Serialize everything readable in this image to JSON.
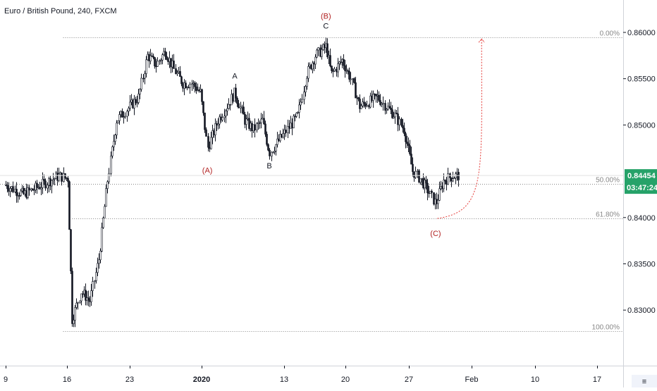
{
  "chart_data": {
    "type": "candlestick",
    "title": "Euro / British Pound, 240, FXCM",
    "y_ticks": [
      "0.86000",
      "0.85500",
      "0.85000",
      "0.84000",
      "0.83500",
      "0.83000"
    ],
    "x_ticks": [
      "9",
      "16",
      "23",
      "2020",
      "13",
      "20",
      "27",
      "Feb",
      "10",
      "17"
    ],
    "ylim": [
      0.824,
      0.8635
    ],
    "grid": false,
    "colors": {
      "up": "#131722",
      "down": "#131722",
      "fib": "#888888",
      "wave_red": "#b22222",
      "wave_black": "#131722",
      "projection": "#e53935",
      "badge": "#26a269"
    },
    "current_price": {
      "price": "0.84454",
      "countdown": "03:47:24",
      "value": 0.84454
    },
    "fib_levels": [
      {
        "label": "0.00%",
        "value": 0.8595
      },
      {
        "label": "50.00%",
        "value": 0.84362
      },
      {
        "label": "61.80%",
        "value": 0.83988
      },
      {
        "label": "100.00%",
        "value": 0.82772
      }
    ],
    "wave_labels": [
      {
        "text": "(B)",
        "color": "red",
        "value": 0.8615,
        "day": 36.2
      },
      {
        "text": "C",
        "color": "black",
        "value": 0.8604,
        "day": 36.2
      },
      {
        "text": "A",
        "color": "black",
        "value": 0.855,
        "day": 25.9
      },
      {
        "text": "(A)",
        "color": "red",
        "value": 0.8448,
        "day": 22.8
      },
      {
        "text": "B",
        "color": "black",
        "value": 0.8453,
        "day": 29.8
      },
      {
        "text": "(C)",
        "color": "red",
        "value": 0.838,
        "day": 48.6
      }
    ],
    "series_anchors": [
      [
        0,
        0.8435
      ],
      [
        2,
        0.8425
      ],
      [
        4,
        0.8435
      ],
      [
        6,
        0.8445
      ],
      [
        7,
        0.8442
      ],
      [
        7.5,
        0.829
      ],
      [
        8.5,
        0.832
      ],
      [
        9.5,
        0.831
      ],
      [
        10.5,
        0.8355
      ],
      [
        11.5,
        0.844
      ],
      [
        12.5,
        0.8505
      ],
      [
        13.5,
        0.8515
      ],
      [
        15,
        0.853
      ],
      [
        16,
        0.8575
      ],
      [
        17,
        0.8565
      ],
      [
        18,
        0.858
      ],
      [
        19,
        0.856
      ],
      [
        20,
        0.8545
      ],
      [
        21,
        0.8545
      ],
      [
        22,
        0.8535
      ],
      [
        22.8,
        0.8475
      ],
      [
        24,
        0.8505
      ],
      [
        25.9,
        0.8535
      ],
      [
        27,
        0.8505
      ],
      [
        28,
        0.8495
      ],
      [
        29,
        0.8505
      ],
      [
        29.8,
        0.847
      ],
      [
        31,
        0.8485
      ],
      [
        33,
        0.851
      ],
      [
        34,
        0.8555
      ],
      [
        35,
        0.8575
      ],
      [
        36.2,
        0.8585
      ],
      [
        36.8,
        0.8555
      ],
      [
        38,
        0.857
      ],
      [
        39,
        0.855
      ],
      [
        40,
        0.852
      ],
      [
        41,
        0.8525
      ],
      [
        42,
        0.853
      ],
      [
        43,
        0.852
      ],
      [
        44,
        0.851
      ],
      [
        45,
        0.8495
      ],
      [
        46,
        0.845
      ],
      [
        47,
        0.844
      ],
      [
        48.6,
        0.8415
      ],
      [
        49.5,
        0.844
      ],
      [
        50.5,
        0.8445
      ],
      [
        51.3,
        0.84454
      ]
    ]
  }
}
